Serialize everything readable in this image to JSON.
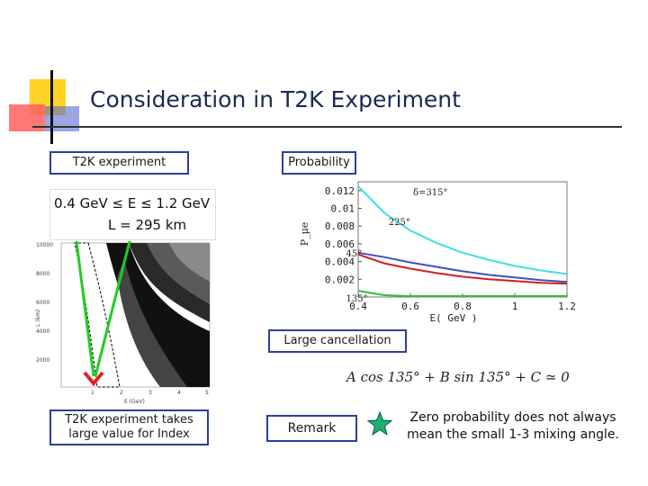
{
  "slide": {
    "title": "Consideration in T2K Experiment",
    "label_t2k": "T2K experiment",
    "label_probability": "Probability",
    "label_cancellation": "Large cancellation",
    "label_takes": "T2K experiment takes large value for Index",
    "label_remark": "Remark",
    "zero_text": "Zero probability does not always mean the small 1-3 mixing angle.",
    "equation": "A cos 135° + B sin 135° + C ≃ 0",
    "formula_line1": "0.4 GeV ≤ E ≤ 1.2 GeV",
    "formula_line2": "L = 295 km"
  },
  "left_plot": {
    "y_ticks": [
      "10000",
      "8000",
      "6000",
      "4000",
      "2000"
    ],
    "x_ticks": [
      "1",
      "2",
      "3",
      "4",
      "5"
    ],
    "xlabel": "E (GeV)",
    "ylabel": "L (km)"
  },
  "chart_data": {
    "type": "line",
    "ylabel": "P_μe",
    "xlabel": "E( GeV )",
    "x_ticks": [
      "0.4",
      "0.6",
      "0.8",
      "1",
      "1.2"
    ],
    "y_ticks": [
      "0.012",
      "0.01",
      "0.008",
      "0.006",
      "0.004",
      "0.002"
    ],
    "xlim": [
      0.4,
      1.2
    ],
    "ylim": [
      0,
      0.013
    ],
    "series": [
      {
        "name": "δ=315°",
        "color": "#40e0e0",
        "x": [
          0.4,
          0.5,
          0.6,
          0.7,
          0.8,
          0.9,
          1.0,
          1.1,
          1.2
        ],
        "y": [
          0.0125,
          0.0095,
          0.0075,
          0.0061,
          0.005,
          0.0042,
          0.0035,
          0.003,
          0.0026
        ]
      },
      {
        "name": "225°",
        "color": "#4050c0",
        "x": [
          0.4,
          0.5,
          0.6,
          0.7,
          0.8,
          0.9,
          1.0,
          1.1,
          1.2
        ],
        "y": [
          0.005,
          0.0045,
          0.0039,
          0.0034,
          0.0029,
          0.0025,
          0.0022,
          0.0019,
          0.0017
        ]
      },
      {
        "name": "45°",
        "color": "#d02020",
        "x": [
          0.4,
          0.5,
          0.6,
          0.7,
          0.8,
          0.9,
          1.0,
          1.1,
          1.2
        ],
        "y": [
          0.0048,
          0.0038,
          0.0032,
          0.0027,
          0.0023,
          0.002,
          0.0018,
          0.0016,
          0.0015
        ]
      },
      {
        "name": "135°",
        "color": "#30c030",
        "x": [
          0.4,
          0.5,
          0.6,
          0.7,
          0.8,
          0.9,
          1.0,
          1.1,
          1.2
        ],
        "y": [
          0.0007,
          0.0002,
          0.0001,
          0.0001,
          0.0001,
          0.0001,
          0.0001,
          0.0001,
          0.0001
        ]
      }
    ]
  },
  "colors": {
    "box_border": "#2b3f9d",
    "arrow": "#22cc22",
    "marker": "#e02020",
    "star": "#20b070"
  }
}
